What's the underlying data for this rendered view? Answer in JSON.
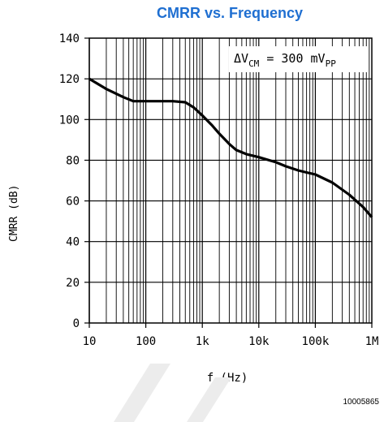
{
  "figure_id": "10005865",
  "chart_data": {
    "type": "line",
    "title": "CMRR vs. Frequency",
    "title_color": "#1f6fd1",
    "xlabel": "f (Hz)",
    "ylabel": "CMRR (dB)",
    "x_scale": "log",
    "xlim": [
      10,
      1000000
    ],
    "ylim": [
      0,
      140
    ],
    "x_ticks": [
      {
        "value": 10,
        "label": "10"
      },
      {
        "value": 100,
        "label": "100"
      },
      {
        "value": 1000,
        "label": "1k"
      },
      {
        "value": 10000,
        "label": "10k"
      },
      {
        "value": 100000,
        "label": "100k"
      },
      {
        "value": 1000000,
        "label": "1M"
      }
    ],
    "y_ticks": [
      0,
      20,
      40,
      60,
      80,
      100,
      120,
      140
    ],
    "grid": true,
    "annotation": {
      "prefix": "ΔV",
      "sub1": "CM",
      "middle": " = 300 mV",
      "sub2": "PP"
    },
    "series": [
      {
        "x": [
          10,
          20,
          40,
          60,
          100,
          200,
          300,
          500,
          700,
          1000,
          1500,
          2000,
          3000,
          4000,
          6000,
          10000,
          20000,
          30000,
          50000,
          70000,
          100000,
          200000,
          400000,
          700000,
          1000000
        ],
        "y": [
          120,
          115,
          111,
          109,
          109,
          109,
          109,
          108.5,
          106,
          102,
          97,
          93,
          88,
          85,
          83,
          81.5,
          79,
          77,
          75,
          74,
          73,
          69,
          63,
          57,
          52
        ]
      }
    ]
  }
}
